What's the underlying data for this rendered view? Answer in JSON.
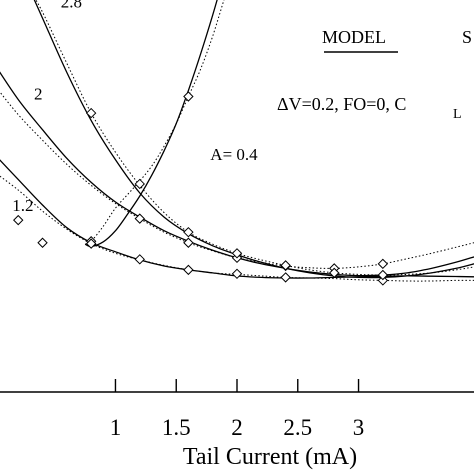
{
  "chart_data": {
    "type": "line",
    "xlabel": "Tail Current (mA)",
    "ylabel": "",
    "xlim": [
      0.05,
      3.95
    ],
    "ylim": [
      0,
      13
    ],
    "x_ticks": [
      1,
      1.5,
      2,
      2.5,
      3
    ],
    "grid": false,
    "legend": {
      "model_label": "MODEL",
      "sim_label": "S"
    },
    "parameters_text": "ΔV=0.2,   FO=0, C",
    "parameters_subscript": "L",
    "series": [
      {
        "name": "A= 0.4",
        "model": [
          [
            0.75,
            4.9
          ],
          [
            0.8,
            4.83
          ],
          [
            0.9,
            4.98
          ],
          [
            1.0,
            5.35
          ],
          [
            1.1,
            5.9
          ],
          [
            1.2,
            6.5
          ],
          [
            1.3,
            7.2
          ],
          [
            1.4,
            8.0
          ],
          [
            1.5,
            8.9
          ],
          [
            1.6,
            10.0
          ],
          [
            1.7,
            11.2
          ],
          [
            1.8,
            12.5
          ],
          [
            1.85,
            13.2
          ]
        ],
        "sim": [
          [
            0.75,
            4.9
          ],
          [
            0.8,
            5.0
          ],
          [
            0.9,
            5.5
          ],
          [
            1.0,
            6.1
          ],
          [
            1.1,
            6.55
          ],
          [
            1.2,
            7.0
          ],
          [
            1.3,
            7.5
          ],
          [
            1.4,
            8.15
          ],
          [
            1.5,
            8.9
          ],
          [
            1.6,
            9.8
          ],
          [
            1.7,
            10.7
          ],
          [
            1.8,
            11.8
          ],
          [
            1.9,
            13.1
          ]
        ],
        "sim_markers": [
          [
            0.8,
            5.0
          ],
          [
            1.6,
            9.8
          ]
        ]
      },
      {
        "name": "1.2",
        "model": [
          [
            0.0,
            7.9
          ],
          [
            0.2,
            7.05
          ],
          [
            0.4,
            6.2
          ],
          [
            0.6,
            5.45
          ],
          [
            0.8,
            4.95
          ],
          [
            1.0,
            4.65
          ],
          [
            1.2,
            4.38
          ],
          [
            1.4,
            4.18
          ],
          [
            1.6,
            4.05
          ],
          [
            1.8,
            3.95
          ],
          [
            2.0,
            3.85
          ],
          [
            2.2,
            3.8
          ],
          [
            2.4,
            3.78
          ],
          [
            2.6,
            3.78
          ],
          [
            2.8,
            3.8
          ],
          [
            3.0,
            3.82
          ],
          [
            3.2,
            3.84
          ],
          [
            3.4,
            3.85
          ],
          [
            3.6,
            3.84
          ],
          [
            3.8,
            3.83
          ],
          [
            3.95,
            3.82
          ]
        ],
        "sim": [
          [
            0.0,
            7.3
          ],
          [
            0.2,
            6.7
          ],
          [
            0.4,
            6.0
          ],
          [
            0.6,
            5.4
          ],
          [
            0.8,
            4.92
          ],
          [
            1.0,
            4.6
          ],
          [
            1.2,
            4.38
          ],
          [
            1.4,
            4.2
          ],
          [
            1.6,
            4.05
          ],
          [
            1.8,
            3.95
          ],
          [
            2.0,
            3.9
          ],
          [
            2.2,
            3.85
          ],
          [
            2.4,
            3.8
          ],
          [
            2.6,
            3.78
          ],
          [
            2.8,
            3.76
          ],
          [
            3.0,
            3.72
          ],
          [
            3.2,
            3.7
          ],
          [
            3.4,
            3.68
          ],
          [
            3.6,
            3.68
          ],
          [
            3.8,
            3.7
          ],
          [
            3.95,
            3.7
          ]
        ],
        "sim_markers": [
          [
            0.8,
            4.92
          ],
          [
            1.2,
            4.4
          ],
          [
            1.6,
            4.05
          ],
          [
            2.0,
            3.92
          ],
          [
            2.4,
            3.8
          ],
          [
            3.2,
            3.7
          ]
        ]
      },
      {
        "name": "2",
        "model": [
          [
            0.0,
            10.9
          ],
          [
            0.2,
            9.7
          ],
          [
            0.4,
            8.7
          ],
          [
            0.6,
            7.75
          ],
          [
            0.8,
            6.95
          ],
          [
            1.0,
            6.3
          ],
          [
            1.2,
            5.8
          ],
          [
            1.4,
            5.35
          ],
          [
            1.6,
            5.0
          ],
          [
            1.8,
            4.7
          ],
          [
            2.0,
            4.45
          ],
          [
            2.2,
            4.25
          ],
          [
            2.4,
            4.1
          ],
          [
            2.6,
            3.98
          ],
          [
            2.8,
            3.9
          ],
          [
            3.0,
            3.86
          ],
          [
            3.2,
            3.88
          ],
          [
            3.4,
            3.95
          ],
          [
            3.6,
            4.1
          ],
          [
            3.8,
            4.3
          ],
          [
            3.95,
            4.48
          ]
        ],
        "sim": [
          [
            0.0,
            10.2
          ],
          [
            0.2,
            9.2
          ],
          [
            0.4,
            8.35
          ],
          [
            0.6,
            7.55
          ],
          [
            0.8,
            6.85
          ],
          [
            1.0,
            6.25
          ],
          [
            1.2,
            5.75
          ],
          [
            1.4,
            5.3
          ],
          [
            1.6,
            4.95
          ],
          [
            1.8,
            4.68
          ],
          [
            2.0,
            4.45
          ],
          [
            2.2,
            4.3
          ],
          [
            2.4,
            4.18
          ],
          [
            2.6,
            4.12
          ],
          [
            2.8,
            4.1
          ],
          [
            3.0,
            4.15
          ],
          [
            3.2,
            4.25
          ],
          [
            3.4,
            4.42
          ],
          [
            3.6,
            4.6
          ],
          [
            3.8,
            4.8
          ],
          [
            3.95,
            4.95
          ]
        ],
        "sim_markers": [
          [
            1.2,
            5.75
          ],
          [
            1.6,
            4.95
          ],
          [
            2.0,
            4.45
          ],
          [
            2.4,
            4.18
          ],
          [
            2.8,
            4.1
          ],
          [
            3.2,
            4.25
          ]
        ]
      },
      {
        "name": "2.8",
        "model": [
          [
            0.3,
            13.3
          ],
          [
            0.4,
            12.4
          ],
          [
            0.6,
            10.6
          ],
          [
            0.8,
            9.0
          ],
          [
            1.0,
            7.7
          ],
          [
            1.2,
            6.6
          ],
          [
            1.4,
            5.8
          ],
          [
            1.6,
            5.25
          ],
          [
            1.8,
            4.85
          ],
          [
            2.0,
            4.55
          ],
          [
            2.2,
            4.3
          ],
          [
            2.4,
            4.1
          ],
          [
            2.6,
            3.95
          ],
          [
            2.8,
            3.85
          ],
          [
            3.0,
            3.8
          ],
          [
            3.2,
            3.8
          ],
          [
            3.4,
            3.85
          ],
          [
            3.6,
            3.95
          ],
          [
            3.8,
            4.1
          ],
          [
            3.95,
            4.25
          ]
        ],
        "sim": [
          [
            0.3,
            13.3
          ],
          [
            0.4,
            12.6
          ],
          [
            0.6,
            10.9
          ],
          [
            0.8,
            9.25
          ],
          [
            1.0,
            7.95
          ],
          [
            1.2,
            6.85
          ],
          [
            1.4,
            5.95
          ],
          [
            1.6,
            5.3
          ],
          [
            1.8,
            4.9
          ],
          [
            2.0,
            4.6
          ],
          [
            2.2,
            4.38
          ],
          [
            2.4,
            4.2
          ],
          [
            2.6,
            4.05
          ],
          [
            2.8,
            3.95
          ],
          [
            3.0,
            3.9
          ],
          [
            3.2,
            3.88
          ],
          [
            3.4,
            3.9
          ],
          [
            3.6,
            3.95
          ],
          [
            3.8,
            4.05
          ],
          [
            3.95,
            4.15
          ]
        ],
        "sim_markers": [
          [
            0.8,
            9.25
          ],
          [
            1.2,
            6.9
          ],
          [
            1.6,
            5.3
          ],
          [
            2.0,
            4.6
          ],
          [
            2.4,
            4.2
          ],
          [
            2.8,
            3.95
          ],
          [
            3.2,
            3.88
          ]
        ]
      }
    ],
    "series_label_positions": [
      [
        1.78,
        7.7
      ],
      [
        0.15,
        6.0
      ],
      [
        0.33,
        9.7
      ],
      [
        0.55,
        12.75
      ]
    ],
    "extra_markers": [
      [
        0.2,
        5.7
      ],
      [
        0.4,
        4.95
      ]
    ]
  }
}
